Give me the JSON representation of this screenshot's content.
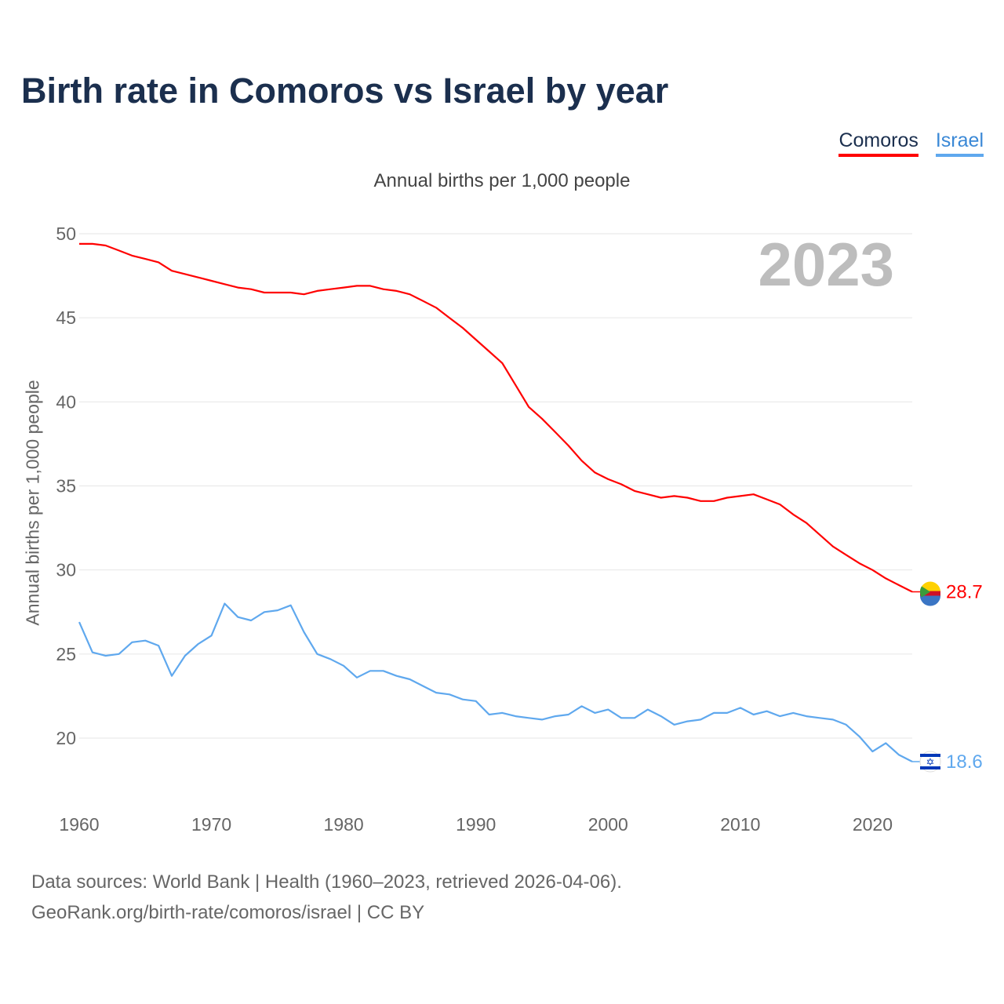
{
  "title": "Birth rate in Comoros vs Israel by year",
  "year_badge": "2023",
  "footer": {
    "line1": "Data sources: World Bank | Health (1960–2023, retrieved 2026-04-06).",
    "line2": "GeoRank.org/birth-rate/comoros/israel | CC BY"
  },
  "chart_data": {
    "type": "line",
    "title": "Birth rate in Comoros vs Israel by year",
    "subtitle": "Annual births per 1,000 people",
    "xlabel": "",
    "ylabel": "Annual births per 1,000 people",
    "xlim": [
      1960,
      2023
    ],
    "ylim": [
      17,
      50
    ],
    "grid": true,
    "legend_position": "top-right",
    "xticks": [
      "1960",
      "1970",
      "1980",
      "1990",
      "2000",
      "2010",
      "2020"
    ],
    "yticks": [
      "20",
      "25",
      "30",
      "35",
      "40",
      "45",
      "50"
    ],
    "x": [
      1960,
      1961,
      1962,
      1963,
      1964,
      1965,
      1966,
      1967,
      1968,
      1969,
      1970,
      1971,
      1972,
      1973,
      1974,
      1975,
      1976,
      1977,
      1978,
      1979,
      1980,
      1981,
      1982,
      1983,
      1984,
      1985,
      1986,
      1987,
      1988,
      1989,
      1990,
      1991,
      1992,
      1993,
      1994,
      1995,
      1996,
      1997,
      1998,
      1999,
      2000,
      2001,
      2002,
      2003,
      2004,
      2005,
      2006,
      2007,
      2008,
      2009,
      2010,
      2011,
      2012,
      2013,
      2014,
      2015,
      2016,
      2017,
      2018,
      2019,
      2020,
      2021,
      2022,
      2023
    ],
    "series": [
      {
        "name": "Comoros",
        "color": "#ff0000",
        "end_label": "28.7",
        "values": [
          49.4,
          49.4,
          49.3,
          49.0,
          48.7,
          48.5,
          48.3,
          47.8,
          47.6,
          47.4,
          47.2,
          47.0,
          46.8,
          46.7,
          46.5,
          46.5,
          46.5,
          46.4,
          46.6,
          46.7,
          46.8,
          46.9,
          46.9,
          46.7,
          46.6,
          46.4,
          46.0,
          45.6,
          45.0,
          44.4,
          43.7,
          43.0,
          42.3,
          41.0,
          39.7,
          39.0,
          38.2,
          37.4,
          36.5,
          35.8,
          35.4,
          35.1,
          34.7,
          34.5,
          34.3,
          34.4,
          34.3,
          34.1,
          34.1,
          34.3,
          34.4,
          34.5,
          34.2,
          33.9,
          33.3,
          32.8,
          32.1,
          31.4,
          30.9,
          30.4,
          30.0,
          29.5,
          29.1,
          28.7
        ]
      },
      {
        "name": "Israel",
        "color": "#5fa8ee",
        "end_label": "18.6",
        "values": [
          26.9,
          25.1,
          24.9,
          25.0,
          25.7,
          25.8,
          25.5,
          23.7,
          24.9,
          25.6,
          26.1,
          28.0,
          27.2,
          27.0,
          27.5,
          27.6,
          27.9,
          26.3,
          25.0,
          24.7,
          24.3,
          23.6,
          24.0,
          24.0,
          23.7,
          23.5,
          23.1,
          22.7,
          22.6,
          22.3,
          22.2,
          21.4,
          21.5,
          21.3,
          21.2,
          21.1,
          21.3,
          21.4,
          21.9,
          21.5,
          21.7,
          21.2,
          21.2,
          21.7,
          21.3,
          20.8,
          21.0,
          21.1,
          21.5,
          21.5,
          21.8,
          21.4,
          21.6,
          21.3,
          21.5,
          21.3,
          21.2,
          21.1,
          20.8,
          20.1,
          19.2,
          19.7,
          19.0,
          18.6
        ]
      }
    ]
  }
}
